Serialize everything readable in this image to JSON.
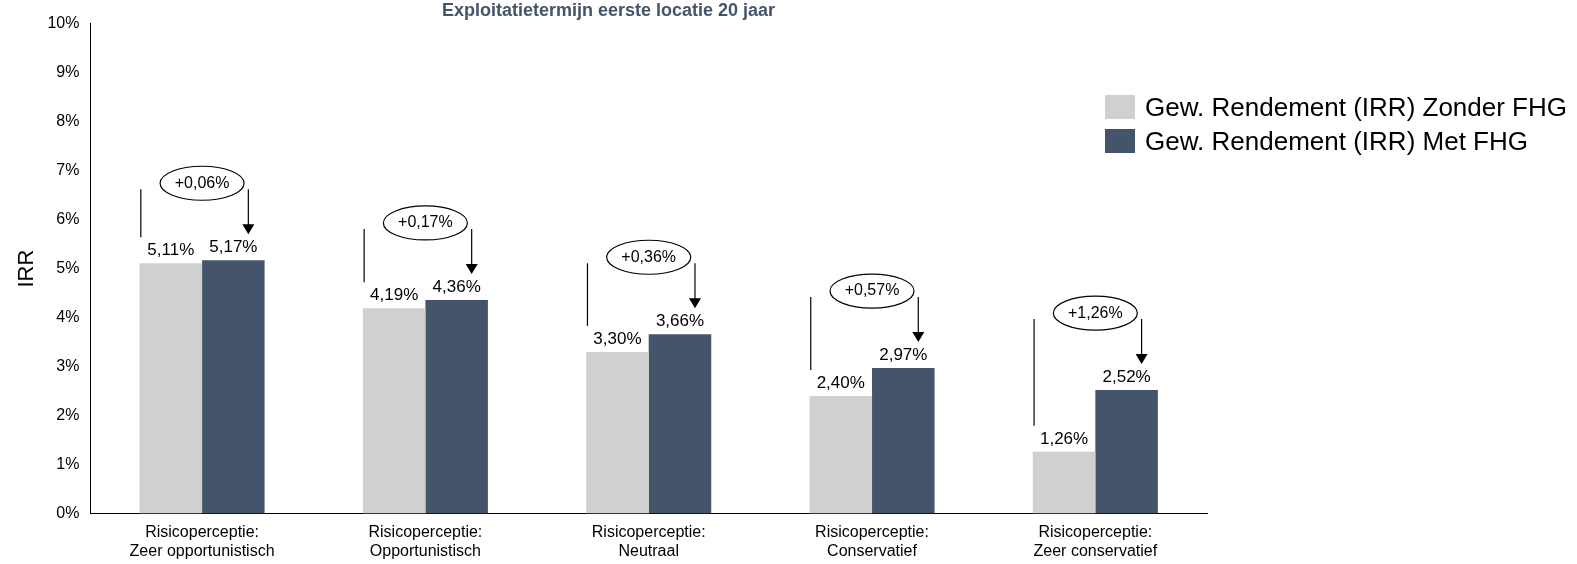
{
  "chart_data": {
    "type": "bar",
    "title": "Exploitatietermijn eerste locatie 20 jaar",
    "ylabel": "IRR",
    "categories": [
      "Risicoperceptie:\nZeer opportunistisch",
      "Risicoperceptie:\nOpportunistisch",
      "Risicoperceptie:\nNeutraal",
      "Risicoperceptie:\nConservatief",
      "Risicoperceptie:\nZeer conservatief"
    ],
    "series": [
      {
        "name": "Gew. Rendement (IRR) Zonder FHG",
        "color": "#d0d0d0",
        "values": [
          5.11,
          4.19,
          3.3,
          2.4,
          1.26
        ],
        "value_labels": [
          "5,11%",
          "4,19%",
          "3,30%",
          "2,40%",
          "1,26%"
        ]
      },
      {
        "name": "Gew. Rendement (IRR) Met FHG",
        "color": "#44546a",
        "values": [
          5.17,
          4.36,
          3.66,
          2.97,
          2.52
        ],
        "value_labels": [
          "5,17%",
          "4,36%",
          "3,66%",
          "2,97%",
          "2,52%"
        ]
      }
    ],
    "ylim": [
      0,
      10
    ],
    "yticks": [
      {
        "value": 0,
        "label": "0%"
      },
      {
        "value": 1,
        "label": "1%"
      },
      {
        "value": 2,
        "label": "2%"
      },
      {
        "value": 3,
        "label": "3%"
      },
      {
        "value": 4,
        "label": "4%"
      },
      {
        "value": 5,
        "label": "5%"
      },
      {
        "value": 6,
        "label": "6%"
      },
      {
        "value": 7,
        "label": "7%"
      },
      {
        "value": 8,
        "label": "8%"
      },
      {
        "value": 9,
        "label": "9%"
      },
      {
        "value": 10,
        "label": "10%"
      }
    ],
    "grid": false,
    "legend": "right",
    "annotations": [
      "+0,06%",
      "+0,17%",
      "+0,36%",
      "+0,57%",
      "+1,26%"
    ]
  }
}
